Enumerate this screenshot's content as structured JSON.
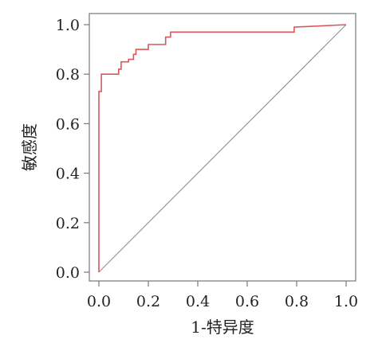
{
  "chart_data": {
    "type": "line",
    "xlabel": "1-特异度",
    "ylabel": "敏感度",
    "xlim": [
      0,
      1.0
    ],
    "ylim": [
      0,
      1.0
    ],
    "x_ticks": [
      "0.0",
      "0.2",
      "0.4",
      "0.6",
      "0.8",
      "1.0"
    ],
    "y_ticks": [
      "0.0",
      "0.2",
      "0.4",
      "0.6",
      "0.8",
      "1.0"
    ],
    "grid": false,
    "series": [
      {
        "color": "#d9575b",
        "x": [
          0,
          0,
          0.01,
          0.01,
          0.08,
          0.08,
          0.09,
          0.09,
          0.12,
          0.12,
          0.14,
          0.14,
          0.15,
          0.15,
          0.2,
          0.2,
          0.27,
          0.27,
          0.29,
          0.29,
          0.79,
          0.79,
          1.0
        ],
        "y": [
          0,
          0.73,
          0.73,
          0.8,
          0.8,
          0.82,
          0.82,
          0.85,
          0.85,
          0.86,
          0.86,
          0.88,
          0.88,
          0.9,
          0.9,
          0.92,
          0.92,
          0.95,
          0.95,
          0.97,
          0.97,
          0.99,
          1.0
        ]
      },
      {
        "color": "#909090",
        "x": [
          0,
          1.0
        ],
        "y": [
          0,
          1.0
        ]
      }
    ]
  }
}
